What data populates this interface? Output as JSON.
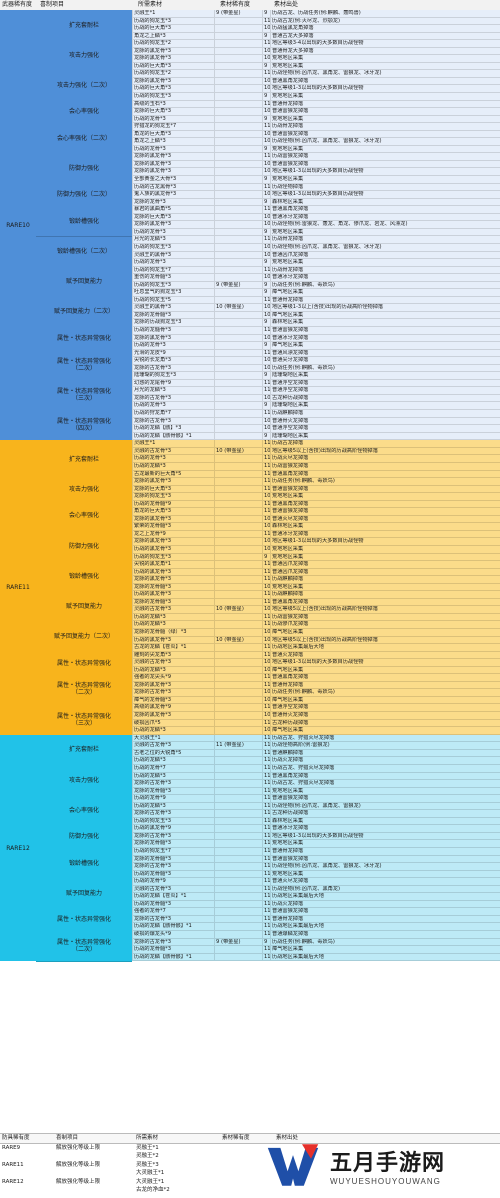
{
  "header": [
    "武器稀有度",
    "喜制项目",
    "所需素材",
    "素材稀有度",
    "素材出处"
  ],
  "sections": [
    {
      "rarity": "RARE10",
      "height": 508,
      "groups": [
        {
          "label": "扩充套耐栏",
          "rows": [
            [
              "灵融王*1",
              "9 (带金星)",
              "9",
              "历战古龙、历战任务(例:麒麟、轰鸣兽)"
            ],
            [
              "历战的狗龙玉*3",
              "",
              "11",
              "历战古龙(例:灭尽龙、烈颚龙)"
            ],
            [
              "历战的巨大角*3",
              "",
              "10",
              "历战猛黑龙角掉落"
            ],
            [
              "角龙之上鳞*3",
              "",
              "9",
              "普通古龙大多掉落"
            ]
          ]
        },
        {
          "label": "攻击力强化",
          "rows": [
            [
              "历战的狗龙玉*2",
              "",
              "11",
              "地区等级3-4以出现的大多数目历战怪物"
            ],
            [
              "龙脉的黑龙骨*3",
              "",
              "10",
              "普通骨龙大多掉落"
            ],
            [
              "龙脉的黑龙骨*3",
              "",
              "10",
              "荒地地区采集"
            ],
            [
              "历战的巨大角*3",
              "",
              "9",
              "荒地地区采集"
            ]
          ]
        },
        {
          "label": "攻击力强化（二次）",
          "rows": [
            [
              "历战的狗龙玉*2",
              "",
              "11",
              "历战怪物(例:凶爪龙、黑角龙、雷狼龙、冰牙龙)"
            ],
            [
              "龙脉的黑龙骨*3",
              "",
              "10",
              "普通黑角龙掉落"
            ],
            [
              "历战的巨大角*3",
              "",
              "10",
              "地区等级1-3以出现的大多数目历战怪物"
            ],
            [
              "历战的狗龙玉*3",
              "",
              "9",
              "荒地地区采集"
            ]
          ]
        },
        {
          "label": "会心率强化",
          "rows": [
            [
              "高级的玉石*3",
              "",
              "11",
              "普通骨龙掉落"
            ],
            [
              "龙脉的巨大角*3",
              "",
              "10",
              "普通雷狼龙掉落"
            ],
            [
              "历战的龙骨*3",
              "",
              "9",
              "荒地地区采集"
            ]
          ]
        },
        {
          "label": "会心率强化（二次）",
          "rows": [
            [
              "狩猎龙的狗龙玉*7",
              "",
              "11",
              "历战骨龙掉落"
            ],
            [
              "角龙的巨大角*3",
              "",
              "10",
              "普通雷狼龙掉落"
            ],
            [
              "角龙之上鳞*3",
              "",
              "10",
              "历战怪物(例:凶爪龙、黑角龙、雷狼龙、冰牙龙)"
            ],
            [
              "历战的龙骨*3",
              "",
              "9",
              "荒地地区采集"
            ]
          ]
        },
        {
          "label": "防御力强化",
          "rows": [
            [
              "龙脉的黑龙骨*3",
              "",
              "11",
              "历战雷狼龙掉落"
            ],
            [
              "龙脉的黑龙骨*3",
              "",
              "10",
              "普通雷狼龙掉落"
            ],
            [
              "龙脉的黑龙骨*3",
              "",
              "10",
              "地区等级1-3以出现的大多数目历战怪物"
            ],
            [
              "全部黄金之大骨*3",
              "",
              "9",
              "荒地地区采集"
            ]
          ]
        },
        {
          "label": "防御力强化（二次）",
          "rows": [
            [
              "历战的古龙黑骨*3",
              "",
              "11",
              "历战怪物掉落"
            ],
            [
              "鬼人族的黑龙骨*3",
              "",
              "10",
              "地区等级1-3以出现的大多数目历战怪物"
            ],
            [
              "龙脉的龙骨*3",
              "",
              "9",
              "森林地区采集"
            ]
          ]
        },
        {
          "label": "锻龄槽强化",
          "rows": [
            [
              "暴君的黑曲角*5",
              "",
              "11",
              "普通黑角龙掉落"
            ],
            [
              "龙脉的巨大角*3",
              "",
              "10",
              "普通冰牙龙掉落"
            ],
            [
              "龙脉的黑龙骨*3",
              "",
              "10",
              "历战怪物(例:雷狼龙、轰龙、角龙、惨爪龙、岩龙、风漂龙)"
            ],
            [
              "历战的龙骨*3",
              "",
              "9",
              "荒地地区采集"
            ]
          ]
        },
        {
          "label": "锻龄槽强化（二次）",
          "rows": [
            [
              "月光的龙鳞*3",
              "",
              "11",
              "历战骨龙掉落"
            ],
            [
              "历战的狗龙玉*3",
              "",
              "10",
              "历战怪物(例:凶爪龙、黑角龙、雷狼龙、冰牙龙)"
            ],
            [
              "灵融王的黑骨*3",
              "",
              "10",
              "普通凶爪龙掉落"
            ],
            [
              "历战的龙骨*3",
              "",
              "9",
              "荒地地区采集"
            ]
          ]
        },
        {
          "label": "赋予回复能力",
          "rows": [
            [
              "历战的狗龙玉*7",
              "",
              "11",
              "历战骨龙掉落"
            ],
            [
              "重伤的龙骨髓*3",
              "",
              "10",
              "普通冰牙龙掉落"
            ],
            [
              "历战的狗龙玉*3",
              "9 (带金星)",
              "9",
              "历战任务(例:麒麟、毒妖鸟)"
            ],
            [
              "吐息里气的狗龙玉*3",
              "",
              "9",
              "瘴气地区采集"
            ]
          ]
        },
        {
          "label": "赋予回复能力（二次）",
          "rows": [
            [
              "历战的狗龙玉*5",
              "",
              "11",
              "普通骨龙掉落"
            ],
            [
              "灵融王的黑骨*3",
              "10 (带金星)",
              "10",
              "地区等级1-3以上(含技)出现的历战高阶怪物掉落"
            ],
            [
              "龙脉的龙骨髓*3",
              "",
              "10",
              "瘴气地区采集"
            ],
            [
              "龙脉的历战狗龙玉*3",
              "",
              "9",
              "森林地区采集"
            ]
          ]
        },
        {
          "label": "属性・状态异常强化",
          "rows": [
            [
              "历战的龙髓骨*3",
              "",
              "11",
              "普通雷狼龙掉落"
            ],
            [
              "龙脉的黑龙骨*3",
              "",
              "10",
              "普通冰牙龙掉落"
            ],
            [
              "历战的龙骨*3",
              "",
              "9",
              "瘴气地区采集"
            ]
          ]
        },
        {
          "label": "属性・状态异常强化\n（二次）",
          "rows": [
            [
              "光滑的龙皮*9",
              "",
              "11",
              "普通风漂龙掉落"
            ],
            [
              "尖锐的长龙角*3",
              "",
              "10",
              "普通尖牙龙掉落"
            ],
            [
              "龙脉的古龙骨*3",
              "",
              "10",
              "历战任务(例:麒麟、毒妖鸟)"
            ],
            [
              "陆珊瑚的狗龙玉*3",
              "",
              "9",
              "陆珊瑚地区采集"
            ]
          ]
        },
        {
          "label": "属性・状态异常强化\n（三次）",
          "rows": [
            [
              "幻惑的龙尾骨*9",
              "",
              "11",
              "普通浮空龙掉落"
            ],
            [
              "月光的龙鳞*3",
              "",
              "11",
              "普通浮空龙掉落"
            ],
            [
              "龙脉的古龙骨*3",
              "",
              "10",
              "古龙种历战掉落"
            ],
            [
              "历战的龙骨*3",
              "",
              "9",
              "陆珊瑚地区采集"
            ]
          ]
        },
        {
          "label": "属性・状态异常强化\n（四次）",
          "rows": [
            [
              "历战的狩龙角*7",
              "",
              "11",
              "历战麒麟掉落"
            ],
            [
              "龙脉的古龙骨*3",
              "",
              "10",
              "普通骨火龙掉落"
            ],
            [
              "历战的龙鳞【骸】*3",
              "",
              "10",
              "普通浮空龙掉落"
            ],
            [
              "历战的龙鳞【骸骨骸】*1",
              "",
              "9",
              "陆珊瑚地区采集"
            ]
          ]
        }
      ]
    },
    {
      "rarity": "RARE11",
      "height": 356,
      "groups": [
        {
          "label": "扩充套耐栏",
          "rows": [
            [
              "灵融王*1",
              "",
              "11",
              "历战古龙掉落"
            ],
            [
              "灵融的古龙骨*3",
              "10 (带金星)",
              "10",
              "地区等级5以上(含技)出现的历战高阶怪物掉落"
            ],
            [
              "历战的龙骨*3",
              "",
              "11",
              "历战灭尽龙掉落"
            ],
            [
              "历战的龙鳞*3",
              "",
              "11",
              "历战雷狼龙掉落"
            ],
            [
              "古龙最新的巨大角*5",
              "",
              "11",
              "普通黑角龙掉落"
            ]
          ]
        },
        {
          "label": "攻击力强化",
          "rows": [
            [
              "龙脉的黑龙骨*3",
              "",
              "11",
              "历战任务(例:麒麟、毒妖鸟)"
            ],
            [
              "龙脉的巨大角*3",
              "",
              "11",
              "普通雷狼龙掉落"
            ],
            [
              "龙脉的狗龙玉*3",
              "",
              "10",
              "荒地地区采集"
            ]
          ]
        },
        {
          "label": "会心率强化",
          "rows": [
            [
              "历战的龙骨髓*9",
              "",
              "11",
              "普通黑角龙掉落"
            ],
            [
              "角龙的巨大角*3",
              "",
              "11",
              "普通雷狼龙掉落"
            ],
            [
              "龙脉的黑龙骨*3",
              "",
              "10",
              "普通灭尽龙掉落"
            ],
            [
              "繁荣的龙骨髓*3",
              "",
              "10",
              "森林地区采集"
            ]
          ]
        },
        {
          "label": "防御力强化",
          "rows": [
            [
              "龙之上龙骨*9",
              "",
              "11",
              "普通冰牙龙掉落"
            ],
            [
              "龙脉的黑龙骨*3",
              "",
              "10",
              "地区等级1-3以出现的大多数目历战怪物"
            ],
            [
              "历战的黑龙骨*3",
              "",
              "10",
              "荒地地区采集"
            ],
            [
              "历战的狗龙玉*3",
              "",
              "9",
              "荒地地区采集"
            ]
          ]
        },
        {
          "label": "锻龄槽强化",
          "rows": [
            [
              "尖锐的黑龙角*1",
              "",
              "11",
              "普通凶爪龙掉落"
            ],
            [
              "历战的黑龙骨*3",
              "",
              "11",
              "普通凶爪龙掉落"
            ],
            [
              "龙脉的黑龙骨*3",
              "",
              "11",
              "历战麒麟掉落"
            ],
            [
              "龙脉的龙骨髓*3",
              "",
              "10",
              "荒地地区采集"
            ]
          ]
        },
        {
          "label": "赋予回复能力",
          "rows": [
            [
              "历战的黑龙骨*3",
              "",
              "11",
              "历战麒麟掉落"
            ],
            [
              "龙脉的龙骨髓*3",
              "",
              "11",
              "普通黑角龙掉落"
            ],
            [
              "灵融的古龙骨*3",
              "10 (带金星)",
              "10",
              "地区等级5以上(含技)出现的历战高阶怪物掉落"
            ],
            [
              "历战的龙鳞*3",
              "",
              "11",
              "历战雷狼龙掉落"
            ]
          ]
        },
        {
          "label": "赋予回复能力（二次）",
          "rows": [
            [
              "历战的龙鳞*3",
              "",
              "11",
              "历战惨爪龙掉落"
            ],
            [
              "龙脉的龙骨髓（绿）*3",
              "",
              "10",
              "瘴气地区采集"
            ],
            [
              "历战的黑龙骨*3",
              "10 (带金星)",
              "10",
              "地区等级5以上(含技)出现的历战高阶怪物掉落"
            ],
            [
              "古龙的龙鳞【苍炎】*1",
              "",
              "11",
              "历战地区采集最后大地"
            ]
          ]
        },
        {
          "label": "属性・状态异常强化",
          "rows": [
            [
              "雕刻的尖龙角*3",
              "",
              "11",
              "普通火龙掉落"
            ],
            [
              "灵融的古龙骨*3",
              "",
              "10",
              "地区等级1-3以出现的大多数目历战怪物"
            ],
            [
              "历战的龙鳞*3",
              "",
              "10",
              "瘴气地区采集"
            ]
          ]
        },
        {
          "label": "属性・状态异常强化\n（二次）",
          "rows": [
            [
              "强者的龙尖头*9",
              "",
              "11",
              "普通黑角龙掉落"
            ],
            [
              "龙脉的黑龙骨*3",
              "",
              "11",
              "普通骨龙掉落"
            ],
            [
              "龙脉的古龙骨*3",
              "",
              "10",
              "历战任务(例:麒麟、毒妖鸟)"
            ],
            [
              "瘴气的龙骨髓*3",
              "",
              "10",
              "瘴气地区采集"
            ]
          ]
        },
        {
          "label": "属性・状态异常强化\n（三次）",
          "rows": [
            [
              "高级的黑龙骨*9",
              "",
              "11",
              "普通浮空龙掉落"
            ],
            [
              "龙脉的黑龙骨*3",
              "",
              "10",
              "普通骨火龙掉落"
            ],
            [
              "破损凶爪*5",
              "",
              "11",
              "古龙种历战掉落"
            ],
            [
              "历战的龙鳞*3",
              "",
              "10",
              "瘴气地区采集"
            ]
          ]
        }
      ]
    },
    {
      "rarity": "RARE12",
      "height": 256,
      "groups": [
        {
          "label": "扩充套耐栏",
          "rows": [
            [
              "大灵融王*1",
              "",
              "11",
              "历战古龙、狩猎灭尽龙掉落"
            ],
            [
              "灵融的古龙骨*3",
              "11 (带金星)",
              "11",
              "历战怪物高阶(例:雷狼龙)"
            ],
            [
              "古老之位的大锐角*5",
              "",
              "11",
              "普通麒麟掉落"
            ],
            [
              "历战的龙鳞*3",
              "",
              "11",
              "历战火龙掉落"
            ]
          ]
        },
        {
          "label": "攻击力强化",
          "rows": [
            [
              "历战的龙骨*7",
              "",
              "11",
              "历战古龙、狩猎灭尽龙掉落"
            ],
            [
              "历战的龙鳞*3",
              "",
              "11",
              "普通黑角龙掉落"
            ],
            [
              "龙脉的古龙骨*3",
              "",
              "11",
              "历战古龙、狩猎灭尽龙掉落"
            ],
            [
              "龙脉的龙骨髓*3",
              "",
              "11",
              "荒地地区采集"
            ]
          ]
        },
        {
          "label": "会心率强化",
          "rows": [
            [
              "历战的龙骨*9",
              "",
              "11",
              "普通雷狼龙掉落"
            ],
            [
              "历战的龙鳞*3",
              "",
              "11",
              "历战怪物(例:凶爪龙、黑角龙、雷狼龙)"
            ],
            [
              "龙脉的古龙骨*3",
              "",
              "11",
              "古龙种历战掉落"
            ],
            [
              "历战的狗龙玉*3",
              "",
              "11",
              "森林地区采集"
            ]
          ]
        },
        {
          "label": "防御力强化",
          "rows": [
            [
              "历战的黑龙骨*9",
              "",
              "11",
              "普通冰牙龙掉落"
            ],
            [
              "龙脉的古龙骨*3",
              "",
              "11",
              "地区等级1-3以出现的大多数目历战怪物"
            ],
            [
              "龙脉的龙骨髓*3",
              "",
              "11",
              "荒地地区采集"
            ]
          ]
        },
        {
          "label": "锻龄槽强化",
          "rows": [
            [
              "历战的狗龙玉*7",
              "",
              "11",
              "普通骨龙掉落"
            ],
            [
              "龙脉的龙骨髓*3",
              "",
              "11",
              "普通雷狼龙掉落"
            ],
            [
              "龙脉的古龙骨*3",
              "",
              "11",
              "历战怪物(例:凶爪龙、黑角龙、雷狼龙、冰牙龙)"
            ],
            [
              "历战的龙骨髓*3",
              "",
              "11",
              "荒地地区采集"
            ]
          ]
        },
        {
          "label": "赋予回复能力",
          "rows": [
            [
              "历战的龙骨*9",
              "",
              "11",
              "普通灭尽龙掉落"
            ],
            [
              "灵融的古龙骨*3",
              "",
              "11",
              "历战怪物(例:凶爪龙、黑角龙)"
            ],
            [
              "历战的龙鳞【苍炎】*1",
              "",
              "11",
              "历战地区采集最后大地"
            ],
            [
              "历战的龙骨髓*3",
              "",
              "11",
              "历战火龙掉落"
            ]
          ]
        },
        {
          "label": "属性・状态异常强化",
          "rows": [
            [
              "强者的龙骨*7",
              "",
              "11",
              "普通雷狼龙掉落"
            ],
            [
              "龙脉的古龙骨*3",
              "",
              "11",
              "普通骨龙掉落"
            ],
            [
              "历战的龙鳞【骸骨骸】*1",
              "",
              "11",
              "历战地区采集最后大地"
            ]
          ]
        },
        {
          "label": "属性・状态异常强化\n（二次）",
          "rows": [
            [
              "破损的爆龙头*9",
              "",
              "11",
              "普通爆鳞龙掉落"
            ],
            [
              "龙脉的古龙骨*3",
              "9 (带金星)",
              "9",
              "历战任务(例:麒麟、毒妖鸟)"
            ],
            [
              "历战的龙骨髓*3",
              "",
              "11",
              "瘴气地区采集"
            ],
            [
              "历战的龙鳞【骸骨骸】*1",
              "",
              "11",
              "历战地区采集最后大地"
            ]
          ]
        }
      ]
    }
  ],
  "footer": {
    "header": [
      "防具稀有度",
      "喜制项目",
      "所需素材",
      "素材稀有度",
      "素材出处"
    ],
    "rows": [
      [
        "RARE9",
        "解放强化等级上限",
        "灵融王*1",
        "",
        ""
      ],
      [
        "",
        "",
        "灵融王*2",
        "",
        ""
      ],
      [
        "RARE11",
        "解放强化等级上限",
        "灵融王*3",
        "",
        ""
      ],
      [
        "",
        "",
        "大灵融王*1",
        "",
        ""
      ],
      [
        "RARE12",
        "解放强化等级上限",
        "大灵融王*1",
        "",
        ""
      ],
      [
        "",
        "",
        "古龙的净血*2",
        "",
        ""
      ]
    ]
  },
  "watermark": {
    "name": "五月手游网",
    "url": "WUYUESHOUYOUWANG",
    "colors": {
      "primary": "#1f4fa8",
      "accent": "#e5302b"
    }
  }
}
